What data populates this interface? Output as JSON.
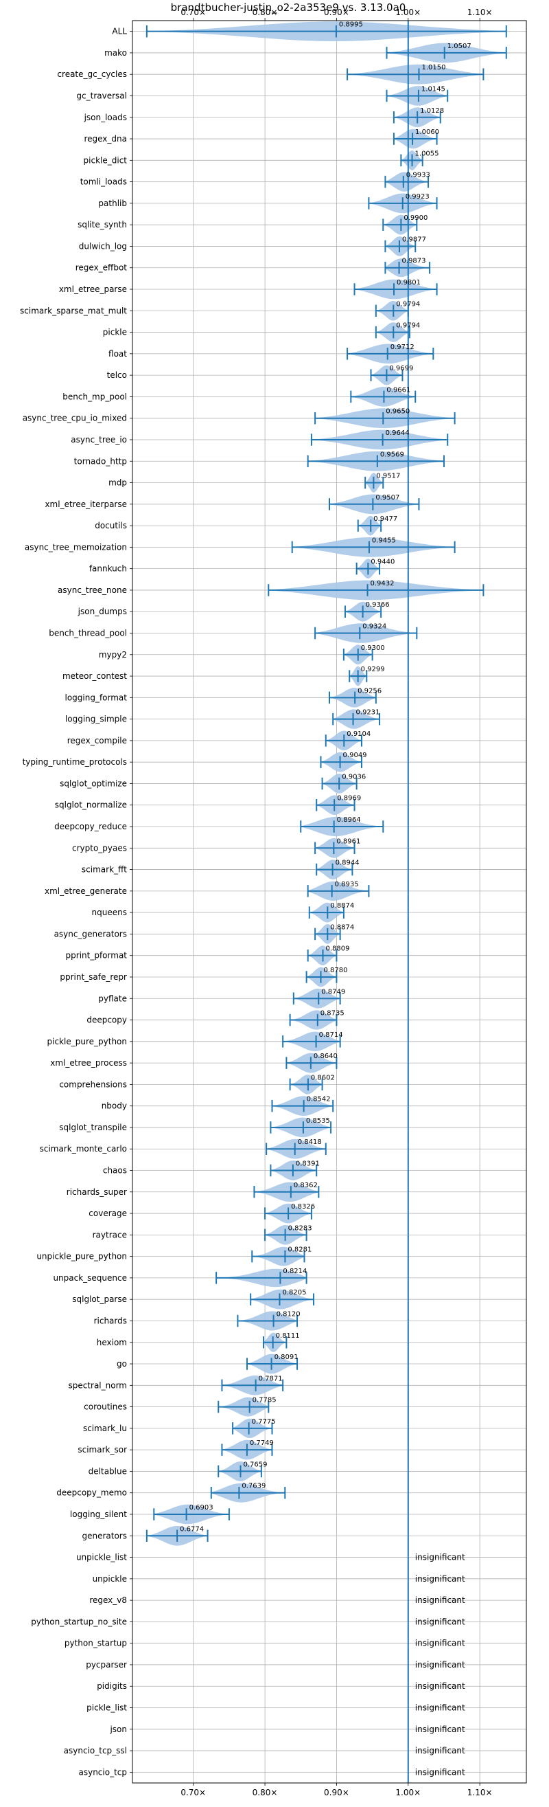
{
  "chart_data": {
    "type": "violin",
    "title": "brandtbucher-justin_o2-2a353e9 vs. 3.13.0a0",
    "xlim": [
      0.615,
      1.165
    ],
    "x_ticks": [
      0.7,
      0.8,
      0.9,
      1.0,
      1.1
    ],
    "x_tick_labels": [
      "0.70×",
      "0.80×",
      "0.90×",
      "1.00×",
      "1.10×"
    ],
    "reference_line": 1.0,
    "grid": true,
    "colors": {
      "violin": "#a8c8e8",
      "whisker": "#1f77b4",
      "refline": "#1f77b4",
      "grid": "#b0b0b0"
    },
    "insignificant_text": "insignificant",
    "benchmarks": [
      {
        "name": "ALL",
        "value": "0.8995",
        "median": 0.8995,
        "min": 0.635,
        "max": 1.137,
        "w": 0.5
      },
      {
        "name": "mako",
        "value": "1.0507",
        "median": 1.0507,
        "min": 0.97,
        "max": 1.137,
        "w": 0.65
      },
      {
        "name": "create_gc_cycles",
        "value": "1.0150",
        "median": 1.015,
        "min": 0.915,
        "max": 1.105,
        "w": 0.5
      },
      {
        "name": "gc_traversal",
        "value": "1.0145",
        "median": 1.0145,
        "min": 0.97,
        "max": 1.055,
        "w": 0.55
      },
      {
        "name": "json_loads",
        "value": "1.0128",
        "median": 1.0128,
        "min": 0.98,
        "max": 1.045,
        "w": 0.55
      },
      {
        "name": "regex_dna",
        "value": "1.0060",
        "median": 1.006,
        "min": 0.98,
        "max": 1.04,
        "w": 0.55
      },
      {
        "name": "pickle_dict",
        "value": "1.0055",
        "median": 1.0055,
        "min": 0.99,
        "max": 1.02,
        "w": 0.5
      },
      {
        "name": "tomli_loads",
        "value": "0.9933",
        "median": 0.9933,
        "min": 0.968,
        "max": 1.028,
        "w": 0.55
      },
      {
        "name": "pathlib",
        "value": "0.9923",
        "median": 0.9923,
        "min": 0.945,
        "max": 1.04,
        "w": 0.55
      },
      {
        "name": "sqlite_synth",
        "value": "0.9900",
        "median": 0.99,
        "min": 0.965,
        "max": 1.012,
        "w": 0.5
      },
      {
        "name": "dulwich_log",
        "value": "0.9877",
        "median": 0.9877,
        "min": 0.968,
        "max": 1.01,
        "w": 0.5
      },
      {
        "name": "regex_effbot",
        "value": "0.9873",
        "median": 0.9873,
        "min": 0.968,
        "max": 1.03,
        "w": 0.5
      },
      {
        "name": "xml_etree_parse",
        "value": "0.9801",
        "median": 0.9801,
        "min": 0.925,
        "max": 1.04,
        "w": 0.5
      },
      {
        "name": "scimark_sparse_mat_mult",
        "value": "0.9794",
        "median": 0.9794,
        "min": 0.955,
        "max": 1.0,
        "w": 0.55
      },
      {
        "name": "pickle",
        "value": "0.9794",
        "median": 0.9794,
        "min": 0.955,
        "max": 1.002,
        "w": 0.5
      },
      {
        "name": "float",
        "value": "0.9712",
        "median": 0.9712,
        "min": 0.915,
        "max": 1.035,
        "w": 0.55
      },
      {
        "name": "telco",
        "value": "0.9699",
        "median": 0.9699,
        "min": 0.948,
        "max": 0.992,
        "w": 0.55
      },
      {
        "name": "bench_mp_pool",
        "value": "0.9661",
        "median": 0.9661,
        "min": 0.92,
        "max": 1.01,
        "w": 0.5
      },
      {
        "name": "async_tree_cpu_io_mixed",
        "value": "0.9650",
        "median": 0.965,
        "min": 0.87,
        "max": 1.065,
        "w": 0.5
      },
      {
        "name": "async_tree_io",
        "value": "0.9644",
        "median": 0.9644,
        "min": 0.865,
        "max": 1.055,
        "w": 0.5
      },
      {
        "name": "tornado_http",
        "value": "0.9569",
        "median": 0.9569,
        "min": 0.86,
        "max": 1.05,
        "w": 0.5
      },
      {
        "name": "mdp",
        "value": "0.9517",
        "median": 0.9517,
        "min": 0.94,
        "max": 0.965,
        "w": 0.5
      },
      {
        "name": "xml_etree_iterparse",
        "value": "0.9507",
        "median": 0.9507,
        "min": 0.89,
        "max": 1.015,
        "w": 0.5
      },
      {
        "name": "docutils",
        "value": "0.9477",
        "median": 0.9477,
        "min": 0.93,
        "max": 0.962,
        "w": 0.5
      },
      {
        "name": "async_tree_memoization",
        "value": "0.9455",
        "median": 0.9455,
        "min": 0.838,
        "max": 1.065,
        "w": 0.5
      },
      {
        "name": "fannkuch",
        "value": "0.9440",
        "median": 0.944,
        "min": 0.928,
        "max": 0.96,
        "w": 0.5
      },
      {
        "name": "async_tree_none",
        "value": "0.9432",
        "median": 0.9432,
        "min": 0.805,
        "max": 1.105,
        "w": 0.5
      },
      {
        "name": "json_dumps",
        "value": "0.9366",
        "median": 0.9366,
        "min": 0.912,
        "max": 0.962,
        "w": 0.5
      },
      {
        "name": "bench_thread_pool",
        "value": "0.9324",
        "median": 0.9324,
        "min": 0.87,
        "max": 1.012,
        "w": 0.5
      },
      {
        "name": "mypy2",
        "value": "0.9300",
        "median": 0.93,
        "min": 0.91,
        "max": 0.95,
        "w": 0.5
      },
      {
        "name": "meteor_contest",
        "value": "0.9299",
        "median": 0.9299,
        "min": 0.918,
        "max": 0.942,
        "w": 0.5
      },
      {
        "name": "logging_format",
        "value": "0.9256",
        "median": 0.9256,
        "min": 0.89,
        "max": 0.955,
        "w": 0.5
      },
      {
        "name": "logging_simple",
        "value": "0.9231",
        "median": 0.9231,
        "min": 0.895,
        "max": 0.96,
        "w": 0.5
      },
      {
        "name": "regex_compile",
        "value": "0.9104",
        "median": 0.9104,
        "min": 0.885,
        "max": 0.935,
        "w": 0.5
      },
      {
        "name": "typing_runtime_protocols",
        "value": "0.9049",
        "median": 0.9049,
        "min": 0.878,
        "max": 0.935,
        "w": 0.5
      },
      {
        "name": "sqlglot_optimize",
        "value": "0.9036",
        "median": 0.9036,
        "min": 0.88,
        "max": 0.928,
        "w": 0.5
      },
      {
        "name": "sqlglot_normalize",
        "value": "0.8969",
        "median": 0.8969,
        "min": 0.872,
        "max": 0.925,
        "w": 0.5
      },
      {
        "name": "deepcopy_reduce",
        "value": "0.8964",
        "median": 0.8964,
        "min": 0.85,
        "max": 0.965,
        "w": 0.5
      },
      {
        "name": "crypto_pyaes",
        "value": "0.8961",
        "median": 0.8961,
        "min": 0.87,
        "max": 0.925,
        "w": 0.5
      },
      {
        "name": "scimark_fft",
        "value": "0.8944",
        "median": 0.8944,
        "min": 0.872,
        "max": 0.922,
        "w": 0.5
      },
      {
        "name": "xml_etree_generate",
        "value": "0.8935",
        "median": 0.8935,
        "min": 0.86,
        "max": 0.945,
        "w": 0.5
      },
      {
        "name": "nqueens",
        "value": "0.8874",
        "median": 0.8874,
        "min": 0.862,
        "max": 0.91,
        "w": 0.5
      },
      {
        "name": "async_generators",
        "value": "0.8874",
        "median": 0.8874,
        "min": 0.87,
        "max": 0.905,
        "w": 0.5
      },
      {
        "name": "pprint_pformat",
        "value": "0.8809",
        "median": 0.8809,
        "min": 0.86,
        "max": 0.9,
        "w": 0.5
      },
      {
        "name": "pprint_safe_repr",
        "value": "0.8780",
        "median": 0.878,
        "min": 0.858,
        "max": 0.9,
        "w": 0.5
      },
      {
        "name": "pyflate",
        "value": "0.8749",
        "median": 0.8749,
        "min": 0.84,
        "max": 0.905,
        "w": 0.5
      },
      {
        "name": "deepcopy",
        "value": "0.8735",
        "median": 0.8735,
        "min": 0.835,
        "max": 0.9,
        "w": 0.5
      },
      {
        "name": "pickle_pure_python",
        "value": "0.8714",
        "median": 0.8714,
        "min": 0.825,
        "max": 0.905,
        "w": 0.5
      },
      {
        "name": "xml_etree_process",
        "value": "0.8640",
        "median": 0.864,
        "min": 0.83,
        "max": 0.9,
        "w": 0.5
      },
      {
        "name": "comprehensions",
        "value": "0.8602",
        "median": 0.8602,
        "min": 0.835,
        "max": 0.88,
        "w": 0.5
      },
      {
        "name": "nbody",
        "value": "0.8542",
        "median": 0.8542,
        "min": 0.81,
        "max": 0.895,
        "w": 0.5
      },
      {
        "name": "sqlglot_transpile",
        "value": "0.8535",
        "median": 0.8535,
        "min": 0.808,
        "max": 0.892,
        "w": 0.5
      },
      {
        "name": "scimark_monte_carlo",
        "value": "0.8418",
        "median": 0.8418,
        "min": 0.802,
        "max": 0.885,
        "w": 0.5
      },
      {
        "name": "chaos",
        "value": "0.8391",
        "median": 0.8391,
        "min": 0.808,
        "max": 0.872,
        "w": 0.5
      },
      {
        "name": "richards_super",
        "value": "0.8362",
        "median": 0.8362,
        "min": 0.785,
        "max": 0.875,
        "w": 0.5
      },
      {
        "name": "coverage",
        "value": "0.8326",
        "median": 0.8326,
        "min": 0.8,
        "max": 0.865,
        "w": 0.5
      },
      {
        "name": "raytrace",
        "value": "0.8283",
        "median": 0.8283,
        "min": 0.8,
        "max": 0.858,
        "w": 0.5
      },
      {
        "name": "unpickle_pure_python",
        "value": "0.8281",
        "median": 0.8281,
        "min": 0.782,
        "max": 0.855,
        "w": 0.5
      },
      {
        "name": "unpack_sequence",
        "value": "0.8214",
        "median": 0.8214,
        "min": 0.732,
        "max": 0.858,
        "w": 0.5
      },
      {
        "name": "sqlglot_parse",
        "value": "0.8205",
        "median": 0.8205,
        "min": 0.78,
        "max": 0.868,
        "w": 0.5
      },
      {
        "name": "richards",
        "value": "0.8120",
        "median": 0.812,
        "min": 0.762,
        "max": 0.845,
        "w": 0.5
      },
      {
        "name": "hexiom",
        "value": "0.8111",
        "median": 0.8111,
        "min": 0.798,
        "max": 0.83,
        "w": 0.5
      },
      {
        "name": "go",
        "value": "0.8091",
        "median": 0.8091,
        "min": 0.775,
        "max": 0.845,
        "w": 0.5
      },
      {
        "name": "spectral_norm",
        "value": "0.7871",
        "median": 0.7871,
        "min": 0.74,
        "max": 0.825,
        "w": 0.5
      },
      {
        "name": "coroutines",
        "value": "0.7785",
        "median": 0.7785,
        "min": 0.735,
        "max": 0.805,
        "w": 0.5
      },
      {
        "name": "scimark_lu",
        "value": "0.7775",
        "median": 0.7775,
        "min": 0.755,
        "max": 0.81,
        "w": 0.5
      },
      {
        "name": "scimark_sor",
        "value": "0.7749",
        "median": 0.7749,
        "min": 0.74,
        "max": 0.81,
        "w": 0.5
      },
      {
        "name": "deltablue",
        "value": "0.7659",
        "median": 0.7659,
        "min": 0.735,
        "max": 0.795,
        "w": 0.5
      },
      {
        "name": "deepcopy_memo",
        "value": "0.7639",
        "median": 0.7639,
        "min": 0.725,
        "max": 0.828,
        "w": 0.5
      },
      {
        "name": "logging_silent",
        "value": "0.6903",
        "median": 0.6903,
        "min": 0.645,
        "max": 0.75,
        "w": 0.5
      },
      {
        "name": "generators",
        "value": "0.6774",
        "median": 0.6774,
        "min": 0.635,
        "max": 0.72,
        "w": 0.5
      },
      {
        "name": "unpickle_list",
        "insignificant": true
      },
      {
        "name": "unpickle",
        "insignificant": true
      },
      {
        "name": "regex_v8",
        "insignificant": true
      },
      {
        "name": "python_startup_no_site",
        "insignificant": true
      },
      {
        "name": "python_startup",
        "insignificant": true
      },
      {
        "name": "pycparser",
        "insignificant": true
      },
      {
        "name": "pidigits",
        "insignificant": true
      },
      {
        "name": "pickle_list",
        "insignificant": true
      },
      {
        "name": "json",
        "insignificant": true
      },
      {
        "name": "asyncio_tcp_ssl",
        "insignificant": true
      },
      {
        "name": "asyncio_tcp",
        "insignificant": true
      }
    ]
  }
}
